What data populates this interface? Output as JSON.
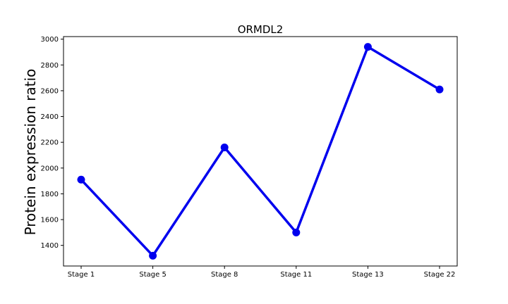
{
  "chart_data": {
    "type": "line",
    "title": "ORMDL2",
    "xlabel": "",
    "ylabel": "Protein expression ratio",
    "categories": [
      "Stage 1",
      "Stage 5",
      "Stage 8",
      "Stage 11",
      "Stage 13",
      "Stage 22"
    ],
    "series": [
      {
        "values": [
          1910,
          1320,
          2160,
          1500,
          2940,
          2610
        ]
      }
    ],
    "ylim": [
      1240,
      3020
    ],
    "yticks": [
      1400,
      1600,
      1800,
      2000,
      2200,
      2400,
      2600,
      2800,
      3000
    ],
    "grid": false,
    "line_color": "#0000ee",
    "marker": "circle"
  }
}
